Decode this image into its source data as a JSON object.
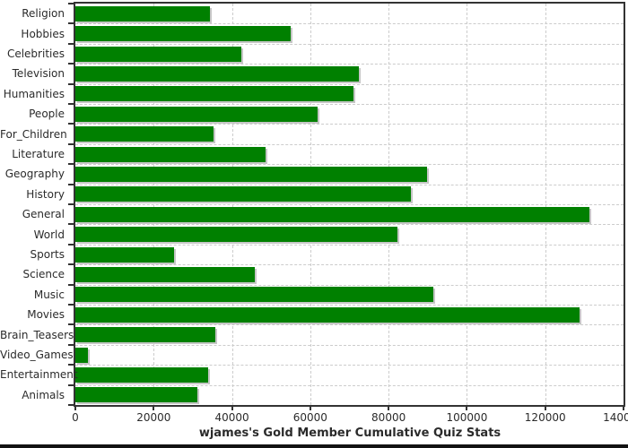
{
  "chart_data": {
    "type": "bar",
    "orientation": "horizontal",
    "title": "wjames's Gold Member Cumulative Quiz Stats",
    "categories": [
      "Religion",
      "Hobbies",
      "Celebrities",
      "Television",
      "Humanities",
      "People",
      "For_Children",
      "Literature",
      "Geography",
      "History",
      "General",
      "World",
      "Sports",
      "Science",
      "Music",
      "Movies",
      "Brain_Teasers",
      "Video_Games",
      "Entertainment",
      "Animals"
    ],
    "values": [
      34400,
      55000,
      42300,
      72500,
      71100,
      61800,
      35300,
      48600,
      89900,
      85600,
      131200,
      82200,
      25300,
      45900,
      91400,
      128700,
      35700,
      3300,
      33800,
      31100
    ],
    "xlabel": "",
    "ylabel": "",
    "xlim": [
      0,
      140000
    ],
    "x_ticks": [
      0,
      20000,
      40000,
      60000,
      80000,
      100000,
      120000,
      140000
    ],
    "x_tick_labels": [
      "0",
      "20000",
      "40000",
      "60000",
      "80000",
      "100000",
      "120000",
      "140000"
    ],
    "grid": "dashed",
    "legend": "none"
  },
  "colors": {
    "bar": "#008000",
    "bar_shadow": "#c6c6c6",
    "grid": "#cccccc",
    "axis": "#333333",
    "text": "#2b2b2b",
    "background": "#ffffff"
  }
}
